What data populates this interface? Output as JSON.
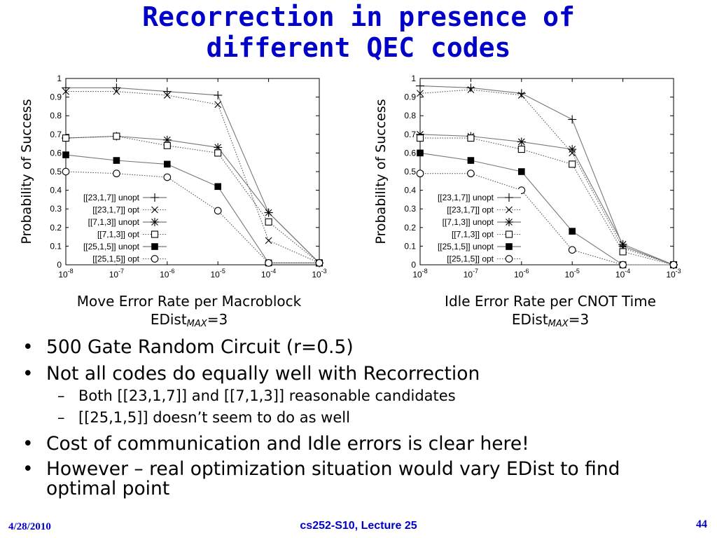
{
  "slide": {
    "title_line1": "Recorrection in presence of",
    "title_line2": "different QEC codes",
    "captions": {
      "left_line1": "Move Error Rate per Macroblock",
      "right_line1": "Idle Error Rate per CNOT Time",
      "edist_prefix": "EDist",
      "edist_sub": "MAX",
      "edist_suffix": "=3"
    },
    "bullets": [
      {
        "text": "500 Gate Random Circuit (r=0.5)"
      },
      {
        "text": "Not all codes do equally well with Recorrection"
      }
    ],
    "sub_bullets": [
      {
        "text": "Both [[23,1,7]] and [[7,1,3]] reasonable candidates"
      },
      {
        "text": "[[25,1,5]] doesn’t seem to do as well"
      }
    ],
    "bullets2": [
      {
        "text": "Cost of communication and Idle errors is clear here!"
      },
      {
        "text": "However – real optimization situation would vary EDist to find optimal point"
      }
    ],
    "footer": {
      "date": "4/28/2010",
      "course": "cs252-S10, Lecture 25",
      "page": "44"
    }
  },
  "chart_data": [
    {
      "type": "line",
      "xlabel": "Move Error Rate per Macroblock",
      "ylabel": "Probability of Success",
      "x_scale": "log",
      "x": [
        1e-08,
        1e-07,
        1e-06,
        1e-05,
        0.0001,
        0.001
      ],
      "x_tick_labels": [
        [
          "10",
          "-8"
        ],
        [
          "10",
          "-7"
        ],
        [
          "10",
          "-6"
        ],
        [
          "10",
          "-5"
        ],
        [
          "10",
          "-4"
        ],
        [
          "10",
          "-3"
        ]
      ],
      "ylim": [
        0,
        1
      ],
      "y_ticks": [
        "0",
        "0.1",
        "0.2",
        "0.3",
        "0.4",
        "0.5",
        "0.6",
        "0.7",
        "0.8",
        "0.9",
        "1"
      ],
      "legend_position": "bottom-left",
      "series": [
        {
          "name": "[[23,1,7]] unopt",
          "marker": "plus",
          "line": "solid",
          "values": [
            0.95,
            0.95,
            0.93,
            0.91,
            0.28,
            0.01
          ]
        },
        {
          "name": "[[23,1,7]] opt",
          "marker": "cross",
          "line": "dotted",
          "values": [
            0.93,
            0.93,
            0.91,
            0.86,
            0.13,
            0.01
          ]
        },
        {
          "name": "[[7,1,3]] unopt",
          "marker": "star",
          "line": "solid",
          "values": [
            0.68,
            0.69,
            0.67,
            0.63,
            0.28,
            0.01
          ]
        },
        {
          "name": "[[7,1,3]] opt",
          "marker": "square",
          "line": "dotted",
          "values": [
            0.68,
            0.69,
            0.64,
            0.6,
            0.23,
            0.01
          ]
        },
        {
          "name": "[[25,1,5]] unopt",
          "marker": "fsquare",
          "line": "solid",
          "values": [
            0.59,
            0.56,
            0.54,
            0.42,
            0.01,
            0.01
          ]
        },
        {
          "name": "[[25,1,5]] opt",
          "marker": "circle",
          "line": "dotted",
          "values": [
            0.5,
            0.49,
            0.47,
            0.29,
            0.01,
            0.01
          ]
        }
      ]
    },
    {
      "type": "line",
      "xlabel": "Idle Error Rate per CNOT Time",
      "ylabel": "Probability of Success",
      "x_scale": "log",
      "x": [
        1e-08,
        1e-07,
        1e-06,
        1e-05,
        0.0001,
        0.001
      ],
      "x_tick_labels": [
        [
          "10",
          "-8"
        ],
        [
          "10",
          "-7"
        ],
        [
          "10",
          "-6"
        ],
        [
          "10",
          "-5"
        ],
        [
          "10",
          "-4"
        ],
        [
          "10",
          "-3"
        ]
      ],
      "ylim": [
        0,
        1
      ],
      "y_ticks": [
        "0",
        "0.1",
        "0.2",
        "0.3",
        "0.4",
        "0.5",
        "0.6",
        "0.7",
        "0.8",
        "0.9",
        "1"
      ],
      "legend_position": "bottom-left",
      "series": [
        {
          "name": "[[23,1,7]] unopt",
          "marker": "plus",
          "line": "solid",
          "values": [
            0.96,
            0.95,
            0.92,
            0.78,
            0.1,
            0.0
          ]
        },
        {
          "name": "[[23,1,7]] opt",
          "marker": "cross",
          "line": "dotted",
          "values": [
            0.92,
            0.94,
            0.91,
            0.6,
            0.09,
            0.0
          ]
        },
        {
          "name": "[[7,1,3]] unopt",
          "marker": "star",
          "line": "solid",
          "values": [
            0.7,
            0.69,
            0.66,
            0.62,
            0.11,
            0.0
          ]
        },
        {
          "name": "[[7,1,3]] opt",
          "marker": "square",
          "line": "dotted",
          "values": [
            0.68,
            0.68,
            0.62,
            0.54,
            0.07,
            0.0
          ]
        },
        {
          "name": "[[25,1,5]] unopt",
          "marker": "fsquare",
          "line": "solid",
          "values": [
            0.6,
            0.56,
            0.5,
            0.18,
            0.0,
            0.0
          ]
        },
        {
          "name": "[[25,1,5]] opt",
          "marker": "circle",
          "line": "dotted",
          "values": [
            0.49,
            0.49,
            0.4,
            0.08,
            0.0,
            0.0
          ]
        }
      ]
    }
  ]
}
